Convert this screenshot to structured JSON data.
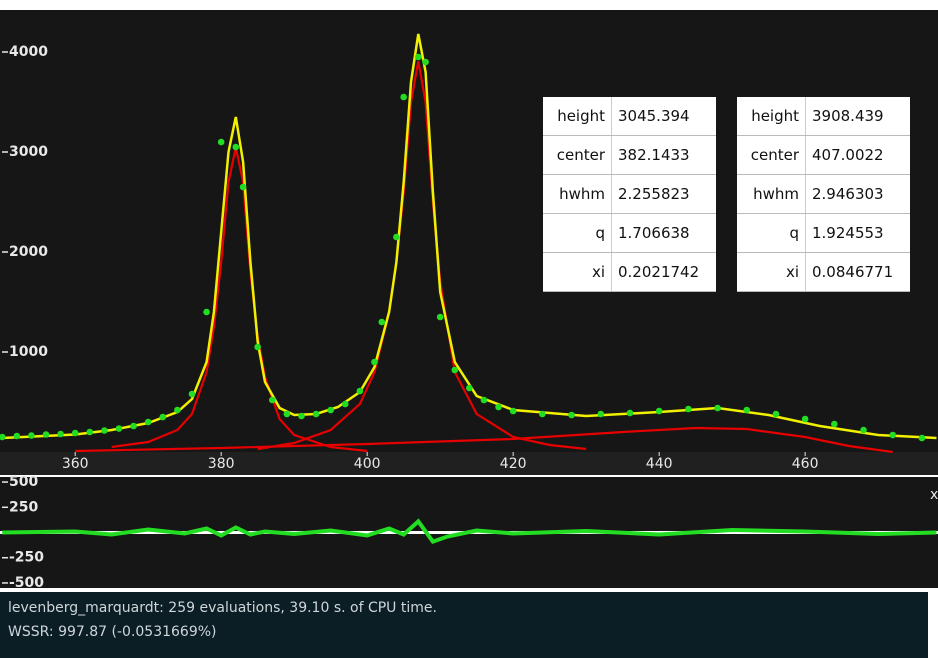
{
  "chart_data": [
    {
      "type": "line",
      "xlim": [
        349.7,
        478.2
      ],
      "xticks": [
        360,
        380,
        400,
        420,
        440,
        460
      ],
      "ylim": [
        0,
        4420
      ],
      "yticks": [
        1000,
        2000,
        3000,
        4000
      ],
      "series": [
        {
          "color": "#e60000",
          "x": [
            365,
            370,
            374,
            376,
            378,
            379,
            380,
            381,
            382,
            383,
            384,
            385,
            386,
            388,
            390,
            395,
            400
          ],
          "values": [
            50,
            100,
            220,
            380,
            800,
            1250,
            1900,
            2700,
            3045,
            2700,
            1800,
            1150,
            750,
            330,
            170,
            50,
            10
          ]
        },
        {
          "color": "#e60000",
          "x": [
            385,
            390,
            395,
            399,
            401,
            403,
            404,
            405,
            406,
            407,
            408,
            409,
            410,
            412,
            415,
            420,
            425,
            430
          ],
          "values": [
            30,
            90,
            220,
            480,
            800,
            1400,
            1900,
            2600,
            3500,
            3908,
            3500,
            2500,
            1700,
            800,
            380,
            150,
            70,
            30
          ]
        },
        {
          "color": "#e60000",
          "x": [
            360,
            380,
            400,
            420,
            435,
            445,
            452,
            460,
            466,
            472
          ],
          "values": [
            10,
            40,
            80,
            130,
            200,
            240,
            230,
            150,
            60,
            0
          ]
        },
        {
          "color": "#f0f000",
          "x": [
            350,
            360,
            365,
            370,
            374,
            376,
            378,
            379,
            380,
            381,
            382,
            383,
            384,
            385,
            386,
            388,
            390,
            393,
            396,
            399,
            401,
            403,
            404,
            405,
            406,
            407,
            408,
            409,
            410,
            412,
            415,
            420,
            430,
            440,
            448,
            455,
            462,
            470,
            478
          ],
          "values": [
            140,
            175,
            220,
            290,
            400,
            530,
            900,
            1400,
            2200,
            3000,
            3350,
            2900,
            1900,
            1100,
            700,
            440,
            370,
            380,
            450,
            600,
            850,
            1400,
            1900,
            2700,
            3700,
            4180,
            3800,
            2600,
            1600,
            900,
            560,
            420,
            360,
            400,
            440,
            370,
            260,
            170,
            140
          ]
        }
      ],
      "points": {
        "color": "#22dd22",
        "x": [
          350,
          352,
          354,
          356,
          358,
          360,
          362,
          364,
          366,
          368,
          370,
          372,
          374,
          376,
          378,
          380,
          382,
          383,
          385,
          387,
          389,
          391,
          393,
          395,
          397,
          399,
          401,
          402,
          404,
          405,
          407,
          408,
          410,
          412,
          414,
          416,
          418,
          420,
          424,
          428,
          432,
          436,
          440,
          444,
          448,
          452,
          456,
          460,
          464,
          468,
          472,
          476
        ],
        "values": [
          150,
          160,
          165,
          175,
          180,
          190,
          200,
          215,
          235,
          260,
          300,
          350,
          420,
          580,
          1400,
          3100,
          3050,
          2650,
          1050,
          520,
          380,
          360,
          380,
          420,
          480,
          610,
          900,
          1300,
          2150,
          3550,
          3950,
          3900,
          1350,
          820,
          640,
          520,
          450,
          410,
          380,
          370,
          380,
          390,
          410,
          430,
          440,
          420,
          380,
          330,
          280,
          220,
          170,
          140
        ]
      }
    },
    {
      "type": "line",
      "x_label": "x",
      "xlim": [
        349.7,
        478.2
      ],
      "ylim": [
        -550,
        550
      ],
      "yticks": [
        500,
        250,
        -250,
        -500
      ],
      "series": [
        {
          "color": "#22dd22",
          "x": [
            350,
            360,
            365,
            370,
            375,
            378,
            380,
            382,
            384,
            386,
            390,
            395,
            400,
            403,
            405,
            407,
            409,
            411,
            415,
            420,
            430,
            440,
            450,
            460,
            470,
            478
          ],
          "values": [
            0,
            10,
            -20,
            30,
            -10,
            40,
            -30,
            50,
            -20,
            10,
            -15,
            20,
            -30,
            40,
            -20,
            110,
            -90,
            -40,
            20,
            -10,
            15,
            -20,
            25,
            10,
            -15,
            0
          ]
        }
      ]
    }
  ],
  "parameter_tables": [
    [
      [
        "height",
        "3045.394"
      ],
      [
        "center",
        "382.1433"
      ],
      [
        "hwhm",
        "2.255823"
      ],
      [
        "q",
        "1.706638"
      ],
      [
        "xi",
        "0.2021742"
      ]
    ],
    [
      [
        "height",
        "3908.439"
      ],
      [
        "center",
        "407.0022"
      ],
      [
        "hwhm",
        "2.946303"
      ],
      [
        "q",
        "1.924553"
      ],
      [
        "xi",
        "0.0846771"
      ]
    ]
  ],
  "status": [
    "levenberg_marquardt: 259 evaluations, 39.10 s. of CPU time.",
    "WSSR: 997.87 (-0.0531669%)"
  ]
}
